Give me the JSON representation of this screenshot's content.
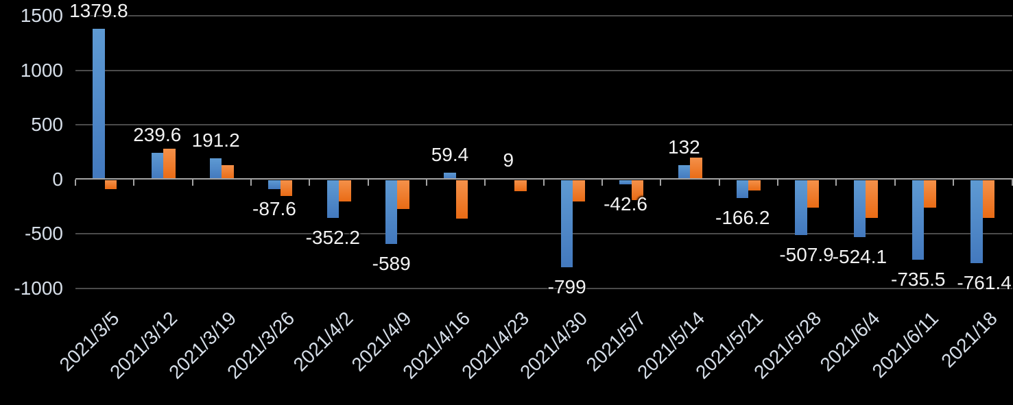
{
  "chart_data": {
    "type": "bar",
    "title": "",
    "legend": "none",
    "grid": true,
    "background": "#000000",
    "axis_color": "#A3A3A3",
    "gridline_color": "#4B4B4B",
    "tick_label_color": "#D6DEE8",
    "data_label_color": "#F2F2F2",
    "categories": [
      "2021/3/5",
      "2021/3/12",
      "2021/3/19",
      "2021/3/26",
      "2021/4/2",
      "2021/4/9",
      "2021/4/16",
      "2021/4/23",
      "2021/4/30",
      "2021/5/7",
      "2021/5/14",
      "2021/5/21",
      "2021/5/28",
      "2021/6/4",
      "2021/6/11",
      "2021/18"
    ],
    "series": [
      {
        "name": "blue-series",
        "color_top": "#5E9AD3",
        "color_bottom": "#4379BE",
        "values": [
          1379.8,
          239.6,
          191.2,
          -87.6,
          -352.2,
          -589,
          59.4,
          9,
          -799,
          -42.6,
          132,
          -166.2,
          -507.9,
          -524.1,
          -735.5,
          -761.4
        ],
        "labels": [
          "1379.8",
          "239.6",
          "191.2",
          "-87.6",
          "-352.2",
          "-589",
          "59.4",
          "9",
          "-799",
          "-42.6",
          "132",
          "-166.2",
          "-507.9",
          "-524.1",
          "-735.5",
          "-761.4"
        ]
      },
      {
        "name": "orange-series",
        "color_top": "#F4914A",
        "color_bottom": "#E96B15",
        "values": [
          -85,
          280,
          130,
          -150,
          -195,
          -270,
          -355,
          -105,
          -200,
          -185,
          195,
          -95,
          -255,
          -350,
          -255,
          -350
        ]
      }
    ],
    "y_axis": {
      "ticks": [
        1500,
        1000,
        500,
        0,
        -500,
        -1000
      ],
      "tick_labels": [
        "1500",
        "1000",
        "500",
        "0",
        "-500",
        "-1000"
      ],
      "ylim": [
        -1000,
        1500
      ],
      "tick_step": 500
    },
    "x_axis": {
      "label_rotation_deg": 45
    }
  }
}
